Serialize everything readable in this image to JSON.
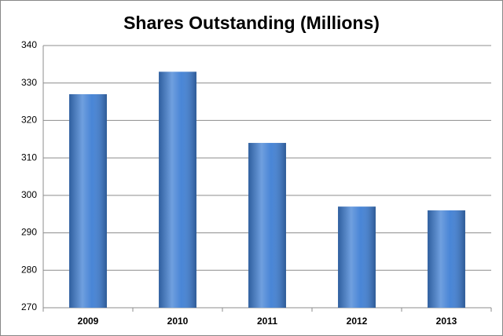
{
  "chart_data": {
    "type": "bar",
    "title": "Shares Outstanding (Millions)",
    "categories": [
      "2009",
      "2010",
      "2011",
      "2012",
      "2013"
    ],
    "values": [
      327,
      333,
      314,
      297,
      296
    ],
    "color": "#3f7fd4",
    "ylim": [
      270,
      340
    ],
    "yticks": [
      270,
      280,
      290,
      300,
      310,
      320,
      330,
      340
    ],
    "grid": true
  }
}
